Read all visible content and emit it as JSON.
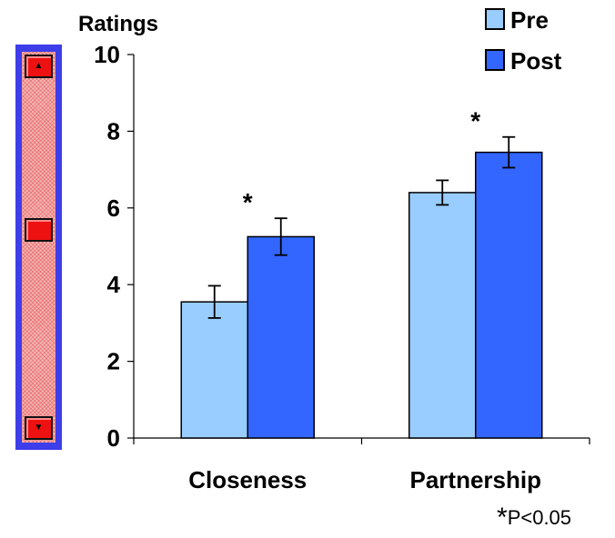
{
  "chart_data": {
    "type": "bar",
    "title": "",
    "ylabel": "Ratings",
    "xlabel": "",
    "ylim": [
      0,
      10
    ],
    "yticks": [
      0,
      2,
      4,
      6,
      8,
      10
    ],
    "categories": [
      "Closeness",
      "Partnership"
    ],
    "series": [
      {
        "name": "Pre",
        "color": "#99ccff",
        "values": [
          3.55,
          6.4
        ],
        "errors": [
          0.42,
          0.32
        ]
      },
      {
        "name": "Post",
        "color": "#3366ff",
        "values": [
          5.25,
          7.45
        ],
        "errors": [
          0.48,
          0.4
        ]
      }
    ],
    "significance": [
      "*",
      "*"
    ],
    "legend_position": "top-right",
    "grid": false
  },
  "footnote": {
    "star": "*",
    "text": "P<0.05"
  },
  "scrollbar": {
    "up_icon": "▲",
    "down_icon": "▼",
    "position": 0.48
  }
}
